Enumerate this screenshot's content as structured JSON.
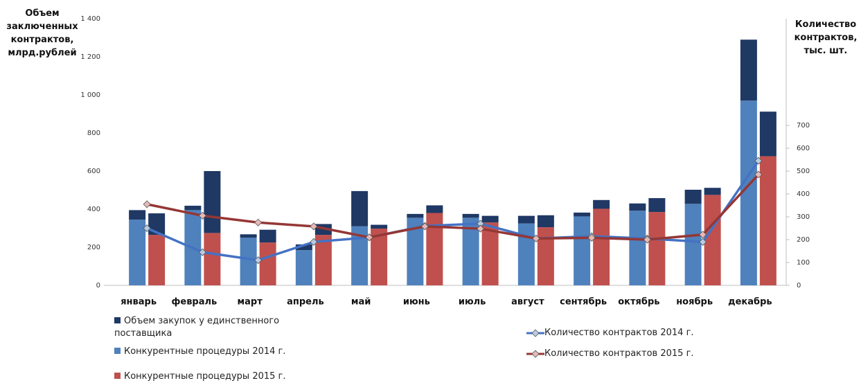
{
  "chart_data": {
    "type": "bar",
    "y_axis_label": "Объем заключенных контрактов, млрд.рублей",
    "y2_axis_label": "Количество контрактов, тыс. шт.",
    "categories": [
      "январь",
      "февраль",
      "март",
      "апрель",
      "май",
      "июнь",
      "июль",
      "август",
      "сентябрь",
      "октябрь",
      "ноябрь",
      "декабрь"
    ],
    "ylim": [
      0,
      1400
    ],
    "yticks": [
      0,
      200,
      400,
      600,
      800,
      {
        "value": 1000,
        "label": "1 000"
      },
      {
        "value": 1200,
        "label": "1 200"
      },
      {
        "value": 1400,
        "label": "1 400"
      }
    ],
    "y2lim": [
      0,
      1167
    ],
    "y2ticks": [
      0,
      100,
      200,
      300,
      400,
      500,
      600,
      700
    ],
    "series": [
      {
        "name": "Объем закупок у единственного поставщика",
        "type": "bar",
        "color": "#1f3864",
        "values": [
          [
            50,
            113
          ],
          [
            23,
            325
          ],
          [
            18,
            67
          ],
          [
            30,
            57
          ],
          [
            185,
            20
          ],
          [
            20,
            40
          ],
          [
            20,
            35
          ],
          [
            40,
            63
          ],
          [
            20,
            46
          ],
          [
            38,
            73
          ],
          [
            74,
            37
          ],
          [
            320,
            234
          ]
        ]
      },
      {
        "name": "Конкурентные процедуры 2014 г.",
        "type": "bar",
        "color": "#4f81bd",
        "values": [
          345,
          395,
          250,
          185,
          310,
          355,
          355,
          325,
          362,
          392,
          428,
          970
        ]
      },
      {
        "name": "Конкурентные процедуры 2015 г.",
        "type": "bar",
        "color": "#c0504d",
        "values": [
          265,
          275,
          225,
          265,
          298,
          380,
          330,
          305,
          402,
          385,
          475,
          678
        ]
      },
      {
        "name": "Количество контрактов 2014 г.",
        "type": "line",
        "axis": "y2",
        "color": "#4472c4",
        "marker_color": "#b8cce4",
        "values": [
          250,
          145,
          110,
          190,
          210,
          260,
          270,
          205,
          215,
          205,
          190,
          545
        ]
      },
      {
        "name": "Количество контрактов 2015 г.",
        "type": "line",
        "axis": "y2",
        "color": "#953735",
        "marker_color": "#e6b9b8",
        "values": [
          355,
          305,
          275,
          258,
          210,
          258,
          248,
          205,
          208,
          200,
          222,
          485
        ]
      }
    ]
  }
}
